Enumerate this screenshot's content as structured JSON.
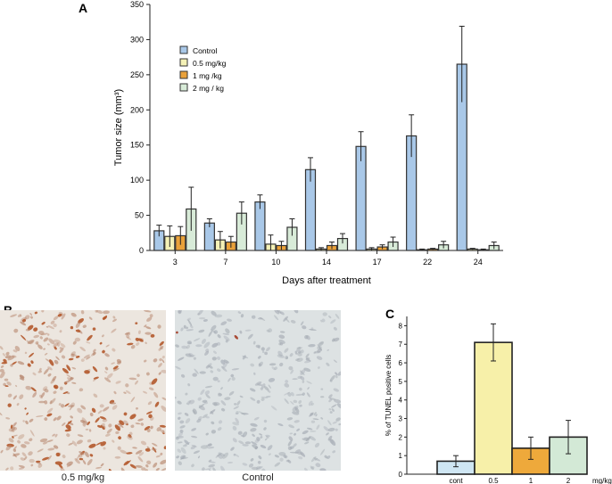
{
  "panel_labels": {
    "a": "A",
    "b": "B",
    "c": "C"
  },
  "micrographs": [
    {
      "caption": "0.5 mg/kg",
      "tint": "#ece6df",
      "cell_color": "#b98a72",
      "stained_color": "#b4592c",
      "stained_fraction": 0.22
    },
    {
      "caption": "Control",
      "tint": "#dde2e3",
      "cell_color": "#a6acb4",
      "stained_color": "#a33b22",
      "stained_fraction": 0.004
    }
  ],
  "chart_data": [
    {
      "type": "bar",
      "panel": "A",
      "title": "",
      "xlabel": "Days after treatment",
      "ylabel": "Tumor size (mm³)",
      "ylim": [
        0,
        350
      ],
      "yticks": [
        0,
        50,
        100,
        150,
        200,
        250,
        300,
        350
      ],
      "categories": [
        "3",
        "7",
        "10",
        "14",
        "17",
        "22",
        "24"
      ],
      "legend_position": "top-left",
      "series": [
        {
          "name": "Control",
          "color": "#a9c8e8",
          "values": [
            28,
            39,
            69,
            115,
            148,
            163,
            265
          ],
          "errors": [
            8,
            6,
            10,
            17,
            21,
            30,
            54
          ]
        },
        {
          "name": "0.5 mg/kg",
          "color": "#f4f1b6",
          "values": [
            20,
            15,
            9,
            2,
            2,
            1,
            2
          ],
          "errors": [
            15,
            12,
            13,
            2,
            2,
            1,
            1
          ]
        },
        {
          "name": "1 mg /kg",
          "color": "#e9a13a",
          "values": [
            21,
            12,
            7,
            7,
            5,
            2,
            1
          ],
          "errors": [
            13,
            8,
            6,
            5,
            3,
            1,
            1
          ]
        },
        {
          "name": "2 mg / kg",
          "color": "#d8ebd8",
          "values": [
            59,
            53,
            33,
            17,
            12,
            8,
            7
          ],
          "errors": [
            31,
            16,
            12,
            7,
            7,
            5,
            5
          ]
        }
      ]
    },
    {
      "type": "bar",
      "panel": "C",
      "title": "",
      "xlabel": "mg/kg",
      "ylabel": "% of TUNEL positive cells",
      "ylim": [
        0,
        8.5
      ],
      "yticks": [
        0,
        1,
        2,
        3,
        4,
        5,
        6,
        7,
        8
      ],
      "categories": [
        "cont",
        "0.5",
        "1",
        "2"
      ],
      "colors": [
        "#cfe6f3",
        "#f7f0a9",
        "#eea93b",
        "#d3e9d6"
      ],
      "values": [
        0.7,
        7.1,
        1.4,
        2.0
      ],
      "errors": [
        0.3,
        1.0,
        0.6,
        0.9
      ]
    }
  ]
}
